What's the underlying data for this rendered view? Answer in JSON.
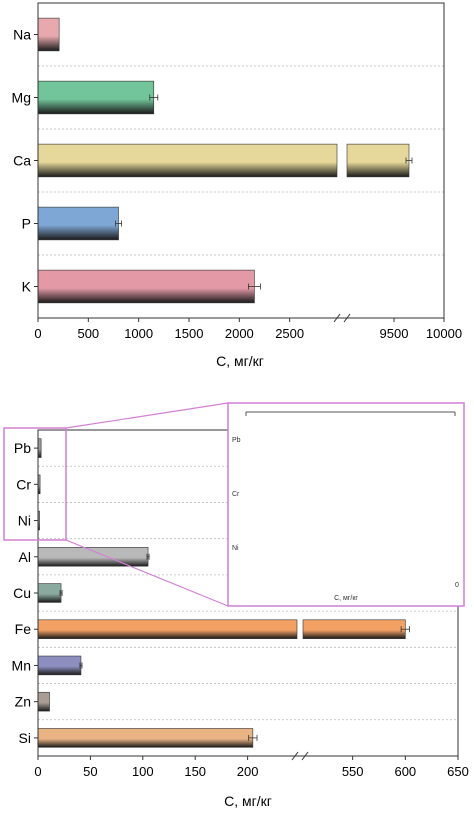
{
  "chart_data": [
    {
      "type": "bar",
      "orientation": "horizontal",
      "categories": [
        "Na",
        "Mg",
        "Ca",
        "P",
        "K"
      ],
      "values": [
        210,
        1150,
        9650,
        800,
        2150
      ],
      "errors": [
        0,
        40,
        30,
        30,
        60
      ],
      "colors": [
        "#e7a9ad",
        "#72c49a",
        "#e6d79a",
        "#7ea7d6",
        "#e39aa6"
      ],
      "xlabel": "C, мг/кг",
      "xticks": [
        "0",
        "500",
        "1000",
        "1500",
        "2000",
        "2500",
        "9500",
        "10000"
      ],
      "xlim": [
        0,
        10000
      ],
      "axis_break": [
        3000,
        9000
      ],
      "grid": false
    },
    {
      "type": "bar",
      "orientation": "horizontal",
      "categories": [
        "Pb",
        "Cr",
        "Ni",
        "Al",
        "Cu",
        "Fe",
        "Mn",
        "Zn",
        "Si"
      ],
      "values": [
        3,
        2,
        1.5,
        105,
        22,
        600,
        41,
        11,
        205
      ],
      "errors": [
        0,
        0,
        0,
        1,
        1,
        4,
        1,
        0,
        4
      ],
      "colors": [
        "#9a9a9a",
        "#9a9a9a",
        "#9a9a9a",
        "#b9b9b9",
        "#8aa99f",
        "#f2a064",
        "#8c8ec0",
        "#a99e95",
        "#e9b384"
      ],
      "xlabel": "C, мг/кг",
      "xticks": [
        "0",
        "50",
        "100",
        "150",
        "200",
        "550",
        "600",
        "650"
      ],
      "xlim": [
        0,
        650
      ],
      "axis_break": [
        250,
        500
      ],
      "grid": false,
      "inset": {
        "xlabel": "C, мг/кг",
        "categories": [
          "Pb",
          "Cr",
          "Ni"
        ],
        "tick_label": "0"
      }
    }
  ]
}
